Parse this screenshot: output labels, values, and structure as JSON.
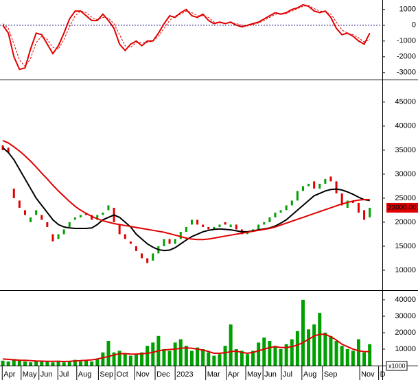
{
  "chart_data": [
    {
      "type": "line",
      "series": [
        {
          "color": "#e00000",
          "dashed": false,
          "values": [
            0,
            -500,
            -2000,
            -2800,
            -2700,
            -1500,
            -500,
            -600,
            -1200,
            -1800,
            -1300,
            -500,
            400,
            900,
            900,
            600,
            300,
            300,
            700,
            300,
            -200,
            -1200,
            -1600,
            -1200,
            -1000,
            -1300,
            -1000,
            -1000,
            -500,
            100,
            600,
            500,
            800,
            1000,
            600,
            500,
            700,
            300,
            100,
            200,
            100,
            200,
            0,
            -100,
            0,
            100,
            200,
            400,
            600,
            800,
            700,
            800,
            1000,
            1100,
            1300,
            1200,
            900,
            800,
            900,
            500,
            -200,
            -600,
            -500,
            -700,
            -1000,
            -1200,
            -500
          ]
        },
        {
          "color": "#e00000",
          "dashed": true,
          "values": [
            100,
            -200,
            -1200,
            -2200,
            -2600,
            -2100,
            -1100,
            -700,
            -900,
            -1400,
            -1500,
            -900,
            -100,
            600,
            900,
            800,
            500,
            350,
            500,
            450,
            100,
            -600,
            -1300,
            -1400,
            -1100,
            -1100,
            -1100,
            -1000,
            -700,
            -200,
            300,
            600,
            700,
            900,
            800,
            600,
            600,
            500,
            200,
            150,
            150,
            150,
            100,
            0,
            -50,
            50,
            150,
            300,
            500,
            700,
            750,
            750,
            900,
            1050,
            1200,
            1250,
            1050,
            900,
            850,
            700,
            200,
            -300,
            -500,
            -600,
            -800,
            -1050,
            -900
          ]
        }
      ],
      "ylim": [
        -3400,
        1600
      ],
      "yticks": [
        -3000,
        -2000,
        -1000,
        0,
        1000
      ],
      "zero_line": true
    },
    {
      "type": "candlestick",
      "open": [
        36000,
        35500,
        27000,
        24500,
        22500,
        20000,
        21500,
        21500,
        20000,
        17500,
        16500,
        17500,
        19000,
        20500,
        21000,
        22000,
        21500,
        20500,
        21500,
        22500,
        23000,
        19500,
        17500,
        16000,
        15000,
        13500,
        12500,
        12000,
        13500,
        15000,
        16500,
        15500,
        16500,
        18000,
        19500,
        20500,
        19500,
        19000,
        18500,
        19000,
        20000,
        19000,
        19500,
        18500,
        17500,
        18000,
        18500,
        19500,
        20000,
        21000,
        22000,
        22500,
        23500,
        24500,
        26500,
        27500,
        28500,
        27000,
        28000,
        29500,
        28500,
        26000,
        23000,
        24500,
        24000,
        22500,
        21000
      ],
      "close": [
        35000,
        34500,
        25000,
        23000,
        21500,
        21000,
        22500,
        20500,
        19000,
        16000,
        17500,
        18500,
        20000,
        21000,
        21500,
        21500,
        20500,
        21500,
        22000,
        23500,
        20000,
        17500,
        16500,
        15500,
        14000,
        12500,
        11500,
        13500,
        15000,
        16500,
        15500,
        16500,
        18000,
        19000,
        20500,
        19500,
        19000,
        18500,
        19000,
        19500,
        19500,
        19500,
        18500,
        17500,
        18000,
        18500,
        19500,
        20000,
        21000,
        22000,
        22500,
        23500,
        24500,
        26500,
        27500,
        28000,
        27000,
        28000,
        29000,
        28500,
        26000,
        23500,
        24500,
        24000,
        22000,
        20500,
        23000
      ],
      "up_color": "#00a000",
      "down_color": "#e00000",
      "series": [
        {
          "color": "#000000",
          "values": [
            35500,
            34500,
            33000,
            31000,
            29000,
            27000,
            25000,
            23500,
            22000,
            20500,
            19500,
            19000,
            18800,
            18700,
            18700,
            18700,
            18800,
            19500,
            20500,
            21000,
            21500,
            21000,
            20000,
            19000,
            17500,
            16500,
            15500,
            14800,
            14300,
            14100,
            14200,
            14700,
            15500,
            16300,
            17000,
            17500,
            18000,
            18300,
            18500,
            18600,
            18500,
            18400,
            18200,
            18000,
            18000,
            18200,
            18400,
            18600,
            18800,
            19200,
            19800,
            20500,
            21500,
            22500,
            23500,
            24500,
            25500,
            26000,
            26500,
            26800,
            26900,
            26700,
            26300,
            25800,
            25200,
            24700,
            24500
          ]
        },
        {
          "color": "#e00000",
          "values": [
            37000,
            36500,
            35700,
            34800,
            33800,
            32700,
            31500,
            30200,
            29000,
            27700,
            26500,
            25400,
            24300,
            23300,
            22500,
            21800,
            21200,
            20700,
            20300,
            20000,
            19700,
            19500,
            19300,
            19100,
            18900,
            18700,
            18500,
            18300,
            18100,
            17900,
            17600,
            17300,
            17000,
            16700,
            16500,
            16400,
            16400,
            16500,
            16700,
            16900,
            17100,
            17300,
            17500,
            17700,
            17900,
            18100,
            18300,
            18500,
            18700,
            19000,
            19400,
            19800,
            20200,
            20600,
            21000,
            21400,
            21800,
            22200,
            22600,
            23000,
            23400,
            23800,
            24100,
            24400,
            24600,
            24700,
            24700
          ]
        }
      ],
      "last": {
        "value": 23000,
        "label": "23000.00"
      },
      "ylim": [
        6000,
        49400
      ],
      "yticks": [
        10000,
        15000,
        20000,
        25000,
        30000,
        35000,
        40000,
        45000
      ]
    },
    {
      "type": "bar",
      "x": [
        0,
        1,
        2,
        3,
        4,
        5,
        6,
        7,
        8,
        9,
        10,
        11,
        12,
        13,
        14,
        15,
        16,
        17,
        18,
        19,
        20,
        21,
        22,
        23,
        24,
        25,
        26,
        27,
        28,
        29,
        30,
        31,
        32,
        33,
        34,
        35,
        36,
        37,
        38,
        39,
        40,
        41,
        42,
        43,
        44,
        45,
        46,
        47,
        48,
        49,
        50,
        51,
        52,
        53,
        54,
        55,
        56,
        57,
        58,
        59,
        60,
        61,
        62,
        63,
        64,
        65,
        66
      ],
      "xlim": [
        -0.5,
        68.14
      ],
      "xticks": [
        {
          "value": -0.1,
          "label": "Apr"
        },
        {
          "value": 3.3,
          "label": "May"
        },
        {
          "value": 6.5,
          "label": "Jun"
        },
        {
          "value": 9.9,
          "label": "Jul"
        },
        {
          "value": 13.3,
          "label": "Aug"
        },
        {
          "value": 17.2,
          "label": "Sep"
        },
        {
          "value": 20.2,
          "label": "Oct"
        },
        {
          "value": 23.7,
          "label": "Nov"
        },
        {
          "value": 27.4,
          "label": "Dec"
        },
        {
          "value": 31,
          "label": "2023"
        },
        {
          "value": 36.5,
          "label": "Mar"
        },
        {
          "value": 40.2,
          "label": "Apr"
        },
        {
          "value": 43.7,
          "label": "May"
        },
        {
          "value": 46.8,
          "label": "Jun"
        },
        {
          "value": 50.1,
          "label": "Jul"
        },
        {
          "value": 53.8,
          "label": "Aug"
        },
        {
          "value": 57.5,
          "label": "Sep"
        },
        {
          "value": 64.2,
          "label": "Nov"
        },
        {
          "value": 67.6,
          "label": "D"
        }
      ],
      "values": [
        3000,
        2500,
        4000,
        3500,
        2500,
        2000,
        2500,
        3000,
        2500,
        2000,
        3000,
        2000,
        2500,
        3500,
        2500,
        3000,
        2500,
        4000,
        8000,
        15000,
        8000,
        9000,
        7000,
        6000,
        7000,
        8000,
        12000,
        14000,
        18000,
        10000,
        9000,
        14000,
        16000,
        12000,
        9000,
        11000,
        10000,
        8000,
        6000,
        7000,
        12000,
        25000,
        10000,
        9000,
        7000,
        9000,
        14000,
        17000,
        15000,
        12000,
        10000,
        13000,
        16000,
        21000,
        40000,
        22000,
        25000,
        32000,
        20000,
        18000,
        15000,
        12000,
        10000,
        9000,
        16000,
        8000,
        13000
      ],
      "color": "#00a000",
      "series": [
        {
          "color": "#e00000",
          "values": [
            4000,
            3800,
            3500,
            3300,
            3200,
            3000,
            2800,
            2700,
            2600,
            2600,
            2600,
            2500,
            2600,
            2800,
            3000,
            3200,
            3500,
            4000,
            4800,
            5500,
            6500,
            7200,
            7300,
            7000,
            7000,
            7200,
            7500,
            8000,
            9000,
            9500,
            9800,
            10000,
            10500,
            10800,
            10500,
            10000,
            9500,
            8500,
            7500,
            7500,
            7800,
            8500,
            8800,
            8000,
            7500,
            8000,
            9000,
            10000,
            11000,
            11500,
            11000,
            11000,
            11500,
            12500,
            14000,
            16000,
            18000,
            19000,
            19000,
            17500,
            15500,
            13000,
            11500,
            10000,
            9000,
            8500,
            8500
          ]
        }
      ],
      "unit_label": "x1000",
      "ylim": [
        0,
        45000
      ],
      "yticks": [
        10000,
        20000,
        30000,
        40000
      ]
    }
  ]
}
